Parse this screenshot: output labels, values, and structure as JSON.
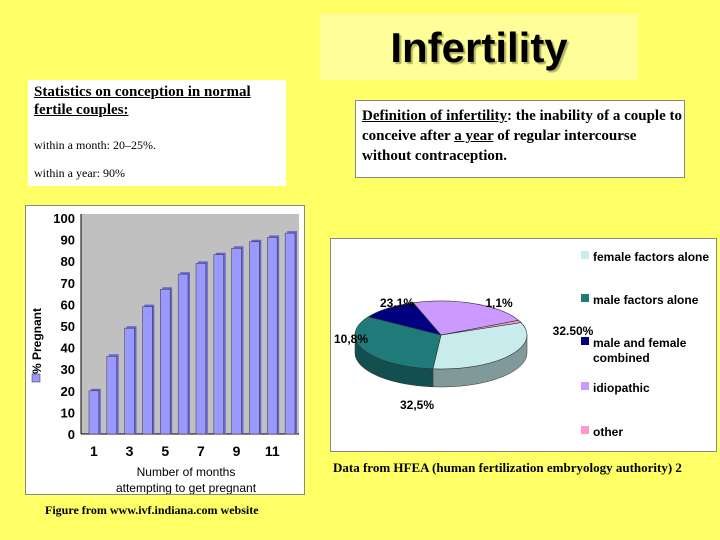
{
  "title": "Infertility",
  "stats": {
    "heading": "Statistics on conception in normal fertile couples:",
    "month": "within a month: 20–25%.",
    "year": "within a year: 90%"
  },
  "definition": {
    "term": "Definition of infertility",
    "part1": ": the inability of a couple to conceive after ",
    "emph": "a year",
    "part2": " of regular intercourse without contraception."
  },
  "bar_caption": "Figure from www.ivf.indiana.com website",
  "pie_source": "Data from HFEA (human fertilization embryology authority) 2",
  "chart_data": [
    {
      "type": "bar",
      "title": "",
      "xlabel": "Number of months attempting to get pregnant",
      "ylabel": "% Pregnant",
      "legend": "% Pregnant",
      "categories": [
        "1",
        "2",
        "3",
        "4",
        "5",
        "6",
        "7",
        "8",
        "9",
        "10",
        "11",
        "12"
      ],
      "xticks": [
        "1",
        "3",
        "5",
        "7",
        "9",
        "11"
      ],
      "values": [
        20,
        36,
        49,
        59,
        67,
        74,
        79,
        83,
        86,
        89,
        91,
        93
      ],
      "ylim": [
        0,
        100
      ],
      "yticks": [
        "0",
        "10",
        "20",
        "30",
        "40",
        "50",
        "60",
        "70",
        "80",
        "90",
        "100"
      ],
      "grid": false,
      "colors": {
        "bar": "#9999ff",
        "bar_side": "#6666cc",
        "plot_bg": "#c0c0c0"
      }
    },
    {
      "type": "pie",
      "title": "",
      "slices": [
        {
          "label": "female factors alone",
          "value": 32.5,
          "value_label": "32.50%",
          "color": "#c8ecec"
        },
        {
          "label": "male factors alone",
          "value": 32.5,
          "value_label": "32,5%",
          "color": "#1f7a7a"
        },
        {
          "label": "male and female combined",
          "value": 10.8,
          "value_label": "10,8%",
          "color": "#000080"
        },
        {
          "label": "idiopathic",
          "value": 23.1,
          "value_label": "23,1%",
          "color": "#cc99ff"
        },
        {
          "label": "other",
          "value": 1.1,
          "value_label": "1,1%",
          "color": "#ff99cc"
        }
      ],
      "legend_position": "right"
    }
  ]
}
